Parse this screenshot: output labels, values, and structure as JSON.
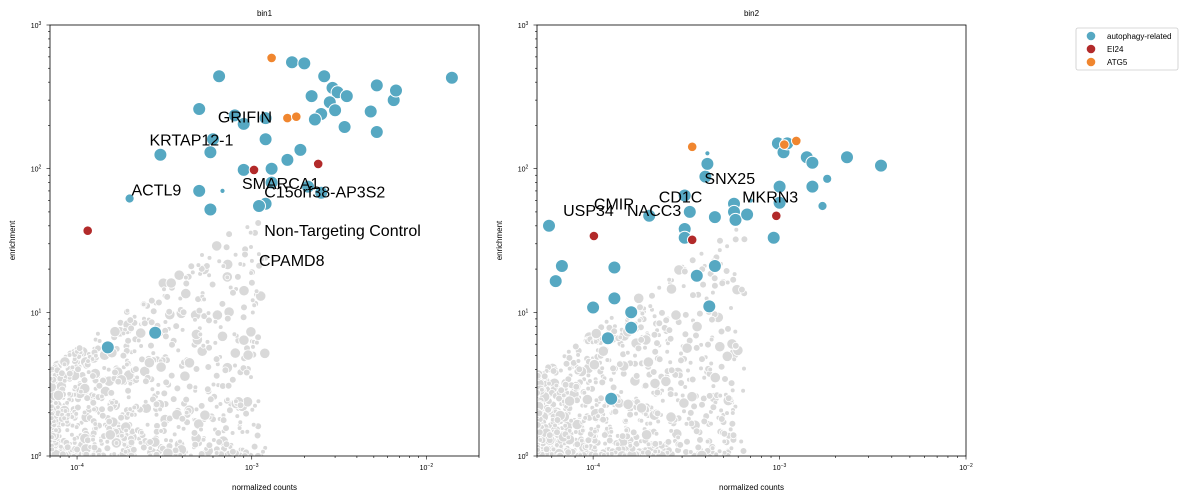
{
  "legend": {
    "placement": "upper-right-outside",
    "entries": [
      {
        "label": "autophagy-related",
        "color": "#56A8C2"
      },
      {
        "label": "EI24",
        "color": "#B22A2A"
      },
      {
        "label": "ATG5",
        "color": "#F0862F"
      }
    ]
  },
  "colors": {
    "background_points": "#d9d9d9",
    "autophagy": "#56A8C2",
    "ei24": "#B22A2A",
    "atg5": "#F0862F"
  },
  "chart_data": [
    {
      "type": "scatter",
      "title": "bin1",
      "xlabel": "normalized counts",
      "ylabel": "enrichment",
      "xscale": "log",
      "yscale": "log",
      "xlim": [
        7e-05,
        0.02
      ],
      "ylim": [
        1,
        1000
      ],
      "xticks": [
        {
          "value": 0.0001,
          "base": "10",
          "exp": "−4"
        },
        {
          "value": 0.001,
          "base": "10",
          "exp": "−3"
        },
        {
          "value": 0.01,
          "base": "10",
          "exp": "−2"
        }
      ],
      "yticks": [
        {
          "value": 1,
          "base": "10",
          "exp": "0"
        },
        {
          "value": 10,
          "base": "10",
          "exp": "1"
        },
        {
          "value": 100,
          "base": "10",
          "exp": "2"
        },
        {
          "value": 1000,
          "base": "10",
          "exp": "3"
        }
      ],
      "grid": false,
      "background_cloud": {
        "x_range": [
          7e-05,
          0.0012
        ],
        "y_range": [
          1,
          55
        ]
      },
      "series": [
        {
          "name": "autophagy-related",
          "color": "#56A8C2",
          "points": [
            [
              0.00065,
              440,
              "l"
            ],
            [
              0.0008,
              235,
              "l"
            ],
            [
              0.0009,
              205,
              "l"
            ],
            [
              0.0005,
              260,
              "l"
            ],
            [
              0.0006,
              160,
              "l"
            ],
            [
              0.00058,
              130,
              "l"
            ],
            [
              0.0003,
              125,
              "l"
            ],
            [
              0.0009,
              98,
              "l"
            ],
            [
              0.0012,
              160,
              "l"
            ],
            [
              0.0013,
              100,
              "l"
            ],
            [
              0.0016,
              115,
              "l"
            ],
            [
              0.0019,
              135,
              "l"
            ],
            [
              0.0013,
              80,
              "l"
            ],
            [
              0.0021,
              75,
              "l"
            ],
            [
              0.0025,
              68,
              "l"
            ],
            [
              0.0012,
              57,
              "l"
            ],
            [
              0.0011,
              55,
              "l"
            ],
            [
              0.0005,
              70,
              "l"
            ],
            [
              0.00068,
              70,
              "s"
            ],
            [
              0.00058,
              52,
              "l"
            ],
            [
              0.0002,
              62,
              "m"
            ],
            [
              0.0012,
              225,
              "l"
            ],
            [
              0.0017,
              550,
              "l"
            ],
            [
              0.002,
              540,
              "l"
            ],
            [
              0.0026,
              440,
              "l"
            ],
            [
              0.0029,
              365,
              "l"
            ],
            [
              0.0031,
              340,
              "l"
            ],
            [
              0.0035,
              320,
              "l"
            ],
            [
              0.0022,
              320,
              "l"
            ],
            [
              0.0028,
              290,
              "l"
            ],
            [
              0.003,
              255,
              "l"
            ],
            [
              0.0025,
              240,
              "l"
            ],
            [
              0.0023,
              220,
              "l"
            ],
            [
              0.0034,
              195,
              "l"
            ],
            [
              0.0048,
              250,
              "l"
            ],
            [
              0.0052,
              380,
              "l"
            ],
            [
              0.0065,
              300,
              "l"
            ],
            [
              0.0067,
              350,
              "l"
            ],
            [
              0.0052,
              180,
              "l"
            ],
            [
              0.014,
              430,
              "l"
            ],
            [
              0.00028,
              7.2,
              "l"
            ],
            [
              0.00015,
              5.7,
              "l"
            ]
          ]
        },
        {
          "name": "EI24",
          "color": "#B22A2A",
          "points": [
            [
              0.000115,
              37
            ],
            [
              0.00103,
              98
            ],
            [
              0.0024,
              108
            ]
          ]
        },
        {
          "name": "ATG5",
          "color": "#F0862F",
          "points": [
            [
              0.0013,
              590
            ],
            [
              0.0016,
              225
            ],
            [
              0.0018,
              230
            ]
          ]
        }
      ],
      "annotations": [
        {
          "text": "GRIFIN",
          "x": 0.00064,
          "y": 210
        },
        {
          "text": "KRTAP12-1",
          "x": 0.00026,
          "y": 145
        },
        {
          "text": "ACTL9",
          "x": 0.000205,
          "y": 65
        },
        {
          "text": "SMARCA1",
          "x": 0.00088,
          "y": 72
        },
        {
          "text": "C15orf38-AP3S2",
          "x": 0.00118,
          "y": 63
        },
        {
          "text": "Non-Targeting Control",
          "x": 0.00118,
          "y": 34
        },
        {
          "text": "CPAMD8",
          "x": 0.0011,
          "y": 21
        }
      ]
    },
    {
      "type": "scatter",
      "title": "bin2",
      "xlabel": "normalized counts",
      "ylabel": "enrichment",
      "xscale": "log",
      "yscale": "log",
      "xlim": [
        5e-05,
        0.01
      ],
      "ylim": [
        1,
        1000
      ],
      "xticks": [
        {
          "value": 0.0001,
          "base": "10",
          "exp": "−4"
        },
        {
          "value": 0.001,
          "base": "10",
          "exp": "−3"
        },
        {
          "value": 0.01,
          "base": "10",
          "exp": "−2"
        }
      ],
      "yticks": [
        {
          "value": 1,
          "base": "10",
          "exp": "0"
        },
        {
          "value": 10,
          "base": "10",
          "exp": "1"
        },
        {
          "value": 100,
          "base": "10",
          "exp": "2"
        },
        {
          "value": 1000,
          "base": "10",
          "exp": "3"
        }
      ],
      "grid": false,
      "background_cloud": {
        "x_range": [
          5e-05,
          0.00065
        ],
        "y_range": [
          1,
          45
        ]
      },
      "series": [
        {
          "name": "autophagy-related",
          "color": "#56A8C2",
          "points": [
            [
              0.00031,
              65,
              "l"
            ],
            [
              0.00033,
              50,
              "l"
            ],
            [
              0.0002,
              47,
              "l"
            ],
            [
              0.0004,
              88,
              "l"
            ],
            [
              0.00041,
              108,
              "l"
            ],
            [
              0.00041,
              128,
              "s"
            ],
            [
              0.00045,
              46,
              "l"
            ],
            [
              0.00057,
              57,
              "l"
            ],
            [
              0.00057,
              50,
              "l"
            ],
            [
              0.00058,
              44,
              "l"
            ],
            [
              0.00067,
              48,
              "l"
            ],
            [
              0.0007,
              60,
              "s"
            ],
            [
              0.001,
              75,
              "l"
            ],
            [
              0.001,
              58,
              "l"
            ],
            [
              0.00098,
              150,
              "l"
            ],
            [
              0.00105,
              130,
              "l"
            ],
            [
              0.0011,
              150,
              "l"
            ],
            [
              0.0014,
              120,
              "l"
            ],
            [
              0.0015,
              110,
              "l"
            ],
            [
              0.0018,
              85,
              "m"
            ],
            [
              0.0015,
              75,
              "l"
            ],
            [
              0.0017,
              55,
              "m"
            ],
            [
              0.0023,
              120,
              "l"
            ],
            [
              0.0035,
              105,
              "l"
            ],
            [
              0.00093,
              33,
              "l"
            ],
            [
              0.00031,
              38,
              "l"
            ],
            [
              0.00031,
              33,
              "l"
            ],
            [
              0.00045,
              21,
              "l"
            ],
            [
              0.00036,
              18,
              "l"
            ],
            [
              0.00042,
              11,
              "l"
            ],
            [
              0.00016,
              10,
              "l"
            ],
            [
              0.00016,
              7.8,
              "l"
            ],
            [
              0.00012,
              6.6,
              "l"
            ],
            [
              6.8e-05,
              21,
              "l"
            ],
            [
              5.8e-05,
              40,
              "l"
            ],
            [
              6.3e-05,
              16.5,
              "l"
            ],
            [
              0.000125,
              2.5,
              "l"
            ],
            [
              0.00013,
              12.5,
              "l"
            ],
            [
              0.0001,
              10.8,
              "l"
            ],
            [
              0.00013,
              20.5,
              "l"
            ]
          ]
        },
        {
          "name": "EI24",
          "color": "#B22A2A",
          "points": [
            [
              0.000101,
              34
            ],
            [
              0.00034,
              32
            ],
            [
              0.00096,
              47
            ]
          ]
        },
        {
          "name": "ATG5",
          "color": "#F0862F",
          "points": [
            [
              0.00034,
              142
            ],
            [
              0.00106,
              147
            ],
            [
              0.00123,
              156
            ]
          ]
        }
      ],
      "annotations": [
        {
          "text": "USP34",
          "x": 6.9e-05,
          "y": 47
        },
        {
          "text": "CMIP",
          "x": 0.000101,
          "y": 52
        },
        {
          "text": "NACC3",
          "x": 0.000152,
          "y": 47
        },
        {
          "text": "CD1C",
          "x": 0.000225,
          "y": 58
        },
        {
          "text": "SNX25",
          "x": 0.000395,
          "y": 78
        },
        {
          "text": "MKRN3",
          "x": 0.00063,
          "y": 58
        }
      ]
    }
  ]
}
